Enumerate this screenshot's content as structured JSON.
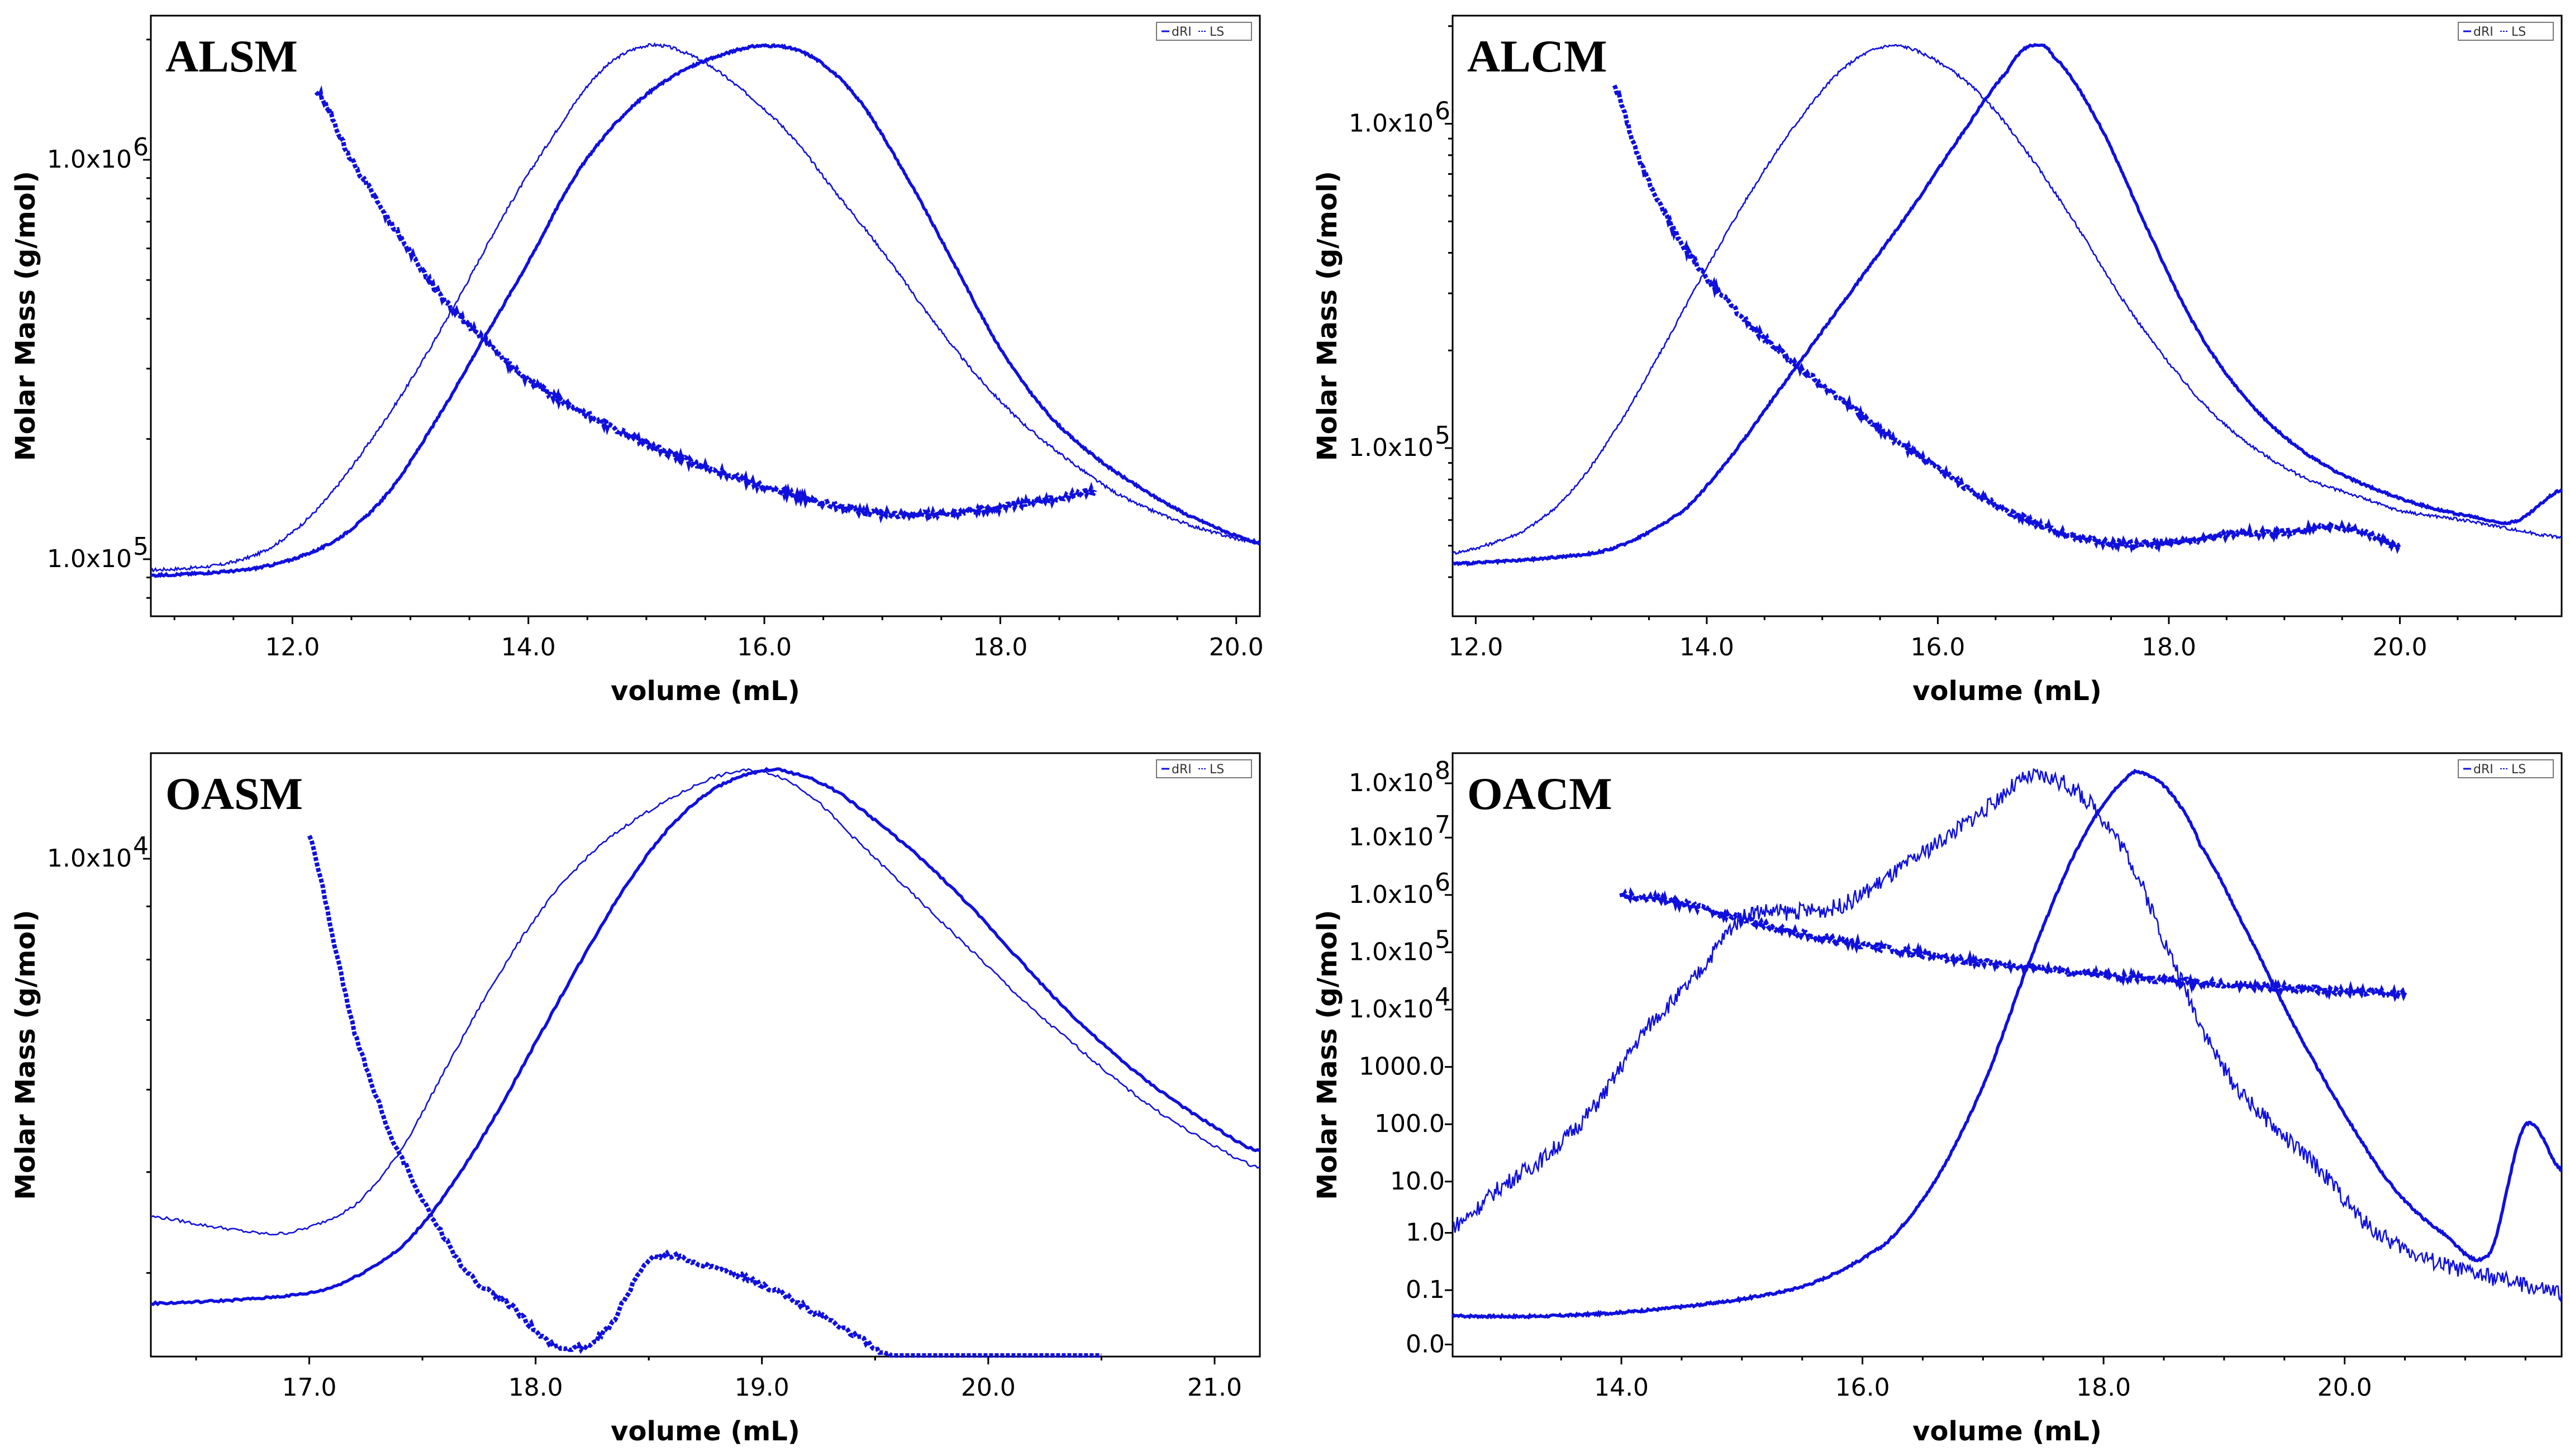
{
  "figure": {
    "color_series": "#1010dd"
  },
  "chart_data": [
    {
      "id": "alsm",
      "type": "line",
      "title": "ALSM",
      "xlabel": "volume (mL)",
      "ylabel": "Molar Mass (g/mol)",
      "xlim": [
        10.8,
        20.2
      ],
      "xticks": [
        "12.0",
        "14.0",
        "16.0",
        "18.0",
        "20.0"
      ],
      "ytick_labels": [
        {
          "label": "1.0x10",
          "sup": "5"
        },
        {
          "label": "1.0x10",
          "sup": "6"
        }
      ],
      "legend": [
        "dRI",
        "LS"
      ],
      "series": [
        {
          "name": "LS",
          "x": [
            10.8,
            11.4,
            11.8,
            12.2,
            12.6,
            13.0,
            13.4,
            13.8,
            14.2,
            14.6,
            15.0,
            15.4,
            15.8,
            16.2,
            16.6,
            17.0,
            17.4,
            17.8,
            18.2,
            18.6,
            19.0,
            19.4,
            19.8,
            20.2
          ],
          "signal": [
            0.03,
            0.04,
            0.07,
            0.14,
            0.25,
            0.38,
            0.53,
            0.69,
            0.83,
            0.95,
            1.0,
            0.98,
            0.92,
            0.84,
            0.73,
            0.62,
            0.5,
            0.39,
            0.3,
            0.23,
            0.17,
            0.13,
            0.1,
            0.08
          ]
        },
        {
          "name": "dRI",
          "x": [
            10.8,
            11.6,
            12.0,
            12.4,
            12.8,
            13.2,
            13.6,
            14.0,
            14.4,
            14.8,
            15.2,
            15.6,
            16.0,
            16.4,
            16.8,
            17.2,
            17.6,
            18.0,
            18.4,
            18.8,
            19.2,
            19.6,
            20.2
          ],
          "signal": [
            0.02,
            0.03,
            0.05,
            0.09,
            0.17,
            0.3,
            0.45,
            0.6,
            0.76,
            0.87,
            0.94,
            0.98,
            1.0,
            0.98,
            0.9,
            0.76,
            0.6,
            0.44,
            0.32,
            0.24,
            0.18,
            0.13,
            0.08
          ]
        },
        {
          "name": "Molar Mass",
          "x": [
            12.2,
            12.5,
            12.8,
            13.2,
            13.6,
            14.0,
            14.5,
            15.0,
            15.5,
            16.0,
            16.5,
            17.0,
            17.5,
            18.0,
            18.5,
            18.8
          ],
          "y": [
            1500000,
            1000000,
            720000,
            480000,
            360000,
            280000,
            230000,
            195000,
            170000,
            152000,
            138000,
            130000,
            130000,
            135000,
            142000,
            148000
          ]
        }
      ]
    },
    {
      "id": "alcm",
      "type": "line",
      "title": "ALCM",
      "xlabel": "volume (mL)",
      "ylabel": "Molar Mass (g/mol)",
      "xlim": [
        11.8,
        21.4
      ],
      "xticks": [
        "12.0",
        "14.0",
        "16.0",
        "18.0",
        "20.0"
      ],
      "ytick_labels": [
        {
          "label": "1.0x10",
          "sup": "5"
        },
        {
          "label": "1.0x10",
          "sup": "6"
        }
      ],
      "legend": [
        "dRI",
        "LS"
      ],
      "series": [
        {
          "name": "LS",
          "x": [
            11.8,
            12.4,
            12.8,
            13.2,
            13.6,
            14.0,
            14.4,
            14.8,
            15.2,
            15.6,
            16.0,
            16.4,
            16.8,
            17.2,
            17.6,
            18.0,
            18.4,
            18.8,
            19.2,
            19.6,
            20.0,
            20.6,
            21.4
          ],
          "signal": [
            0.04,
            0.08,
            0.15,
            0.27,
            0.42,
            0.58,
            0.73,
            0.86,
            0.96,
            1.0,
            0.97,
            0.9,
            0.79,
            0.66,
            0.52,
            0.4,
            0.3,
            0.23,
            0.18,
            0.15,
            0.12,
            0.1,
            0.07
          ]
        },
        {
          "name": "dRI",
          "x": [
            11.8,
            12.6,
            13.2,
            13.8,
            14.2,
            14.6,
            15.0,
            15.4,
            15.8,
            16.2,
            16.6,
            16.8,
            17.0,
            17.4,
            17.8,
            18.2,
            18.6,
            19.0,
            19.4,
            19.8,
            20.2,
            20.6,
            21.0,
            21.4
          ],
          "signal": [
            0.02,
            0.03,
            0.05,
            0.12,
            0.22,
            0.34,
            0.46,
            0.58,
            0.7,
            0.83,
            0.95,
            1.0,
            0.98,
            0.85,
            0.66,
            0.48,
            0.35,
            0.26,
            0.2,
            0.16,
            0.13,
            0.11,
            0.1,
            0.16
          ]
        },
        {
          "name": "Molar Mass",
          "x": [
            13.2,
            13.4,
            13.6,
            13.8,
            14.0,
            14.4,
            14.8,
            15.2,
            15.6,
            16.0,
            16.5,
            17.0,
            17.5,
            18.0,
            18.5,
            19.0,
            19.5,
            20.0
          ],
          "y": [
            1300000,
            800000,
            560000,
            420000,
            330000,
            235000,
            178000,
            138000,
            108000,
            86000,
            67000,
            56000,
            51000,
            51000,
            54000,
            55000,
            57000,
            50000
          ]
        }
      ]
    },
    {
      "id": "oasm",
      "type": "line",
      "title": "OASM",
      "xlabel": "volume (mL)",
      "ylabel": "Molar Mass (g/mol)",
      "xlim": [
        16.3,
        21.2
      ],
      "xticks": [
        "17.0",
        "18.0",
        "19.0",
        "20.0",
        "21.0"
      ],
      "ytick_labels": [
        {
          "label": "1.0x10",
          "sup": "4"
        }
      ],
      "legend": [
        "dRI",
        "LS"
      ],
      "series": [
        {
          "name": "LS",
          "x": [
            16.3,
            16.6,
            16.9,
            17.2,
            17.4,
            17.6,
            17.8,
            18.0,
            18.2,
            18.4,
            18.6,
            18.8,
            19.0,
            19.2,
            19.4,
            19.6,
            19.8,
            20.0,
            20.2,
            20.4,
            20.6,
            20.8,
            21.0,
            21.2
          ],
          "signal": [
            0.18,
            0.16,
            0.15,
            0.2,
            0.3,
            0.45,
            0.6,
            0.73,
            0.83,
            0.9,
            0.95,
            0.99,
            1.0,
            0.96,
            0.88,
            0.8,
            0.72,
            0.64,
            0.56,
            0.49,
            0.42,
            0.36,
            0.31,
            0.27
          ]
        },
        {
          "name": "dRI",
          "x": [
            16.3,
            16.8,
            17.1,
            17.4,
            17.6,
            17.8,
            18.0,
            18.2,
            18.4,
            18.6,
            18.8,
            19.0,
            19.1,
            19.3,
            19.5,
            19.7,
            19.9,
            20.1,
            20.3,
            20.5,
            20.7,
            20.9,
            21.2
          ],
          "signal": [
            0.02,
            0.03,
            0.05,
            0.12,
            0.22,
            0.35,
            0.5,
            0.65,
            0.79,
            0.9,
            0.97,
            1.0,
            1.0,
            0.97,
            0.91,
            0.84,
            0.76,
            0.67,
            0.58,
            0.5,
            0.43,
            0.37,
            0.3
          ]
        },
        {
          "name": "Molar Mass",
          "x": [
            17.0,
            17.1,
            17.2,
            17.35,
            17.5,
            17.7,
            17.9,
            18.1,
            18.3,
            18.5,
            18.7,
            19.0,
            19.3,
            19.6,
            19.9,
            20.2,
            20.5
          ],
          "y": [
            10500,
            8500,
            6800,
            5500,
            4700,
            4000,
            3700,
            3400,
            3500,
            4100,
            4100,
            3900,
            3600,
            3300,
            3100,
            2900,
            2800
          ]
        }
      ]
    },
    {
      "id": "oacm",
      "type": "line",
      "title": "OACM",
      "xlabel": "volume (mL)",
      "ylabel": "Molar Mass (g/mol)",
      "xlim": [
        12.6,
        21.8
      ],
      "xticks": [
        "14.0",
        "16.0",
        "18.0",
        "20.0"
      ],
      "ytick_labels": [
        {
          "label": "0.0",
          "sup": ""
        },
        {
          "label": "0.1",
          "sup": ""
        },
        {
          "label": "1.0",
          "sup": ""
        },
        {
          "label": "10.0",
          "sup": ""
        },
        {
          "label": "100.0",
          "sup": ""
        },
        {
          "label": "1000.0",
          "sup": ""
        },
        {
          "label": "1.0x10",
          "sup": "4"
        },
        {
          "label": "1.0x10",
          "sup": "5"
        },
        {
          "label": "1.0x10",
          "sup": "6"
        },
        {
          "label": "1.0x10",
          "sup": "7"
        },
        {
          "label": "1.0x10",
          "sup": "8"
        }
      ],
      "legend": [
        "dRI",
        "LS"
      ],
      "series": [
        {
          "name": "LS",
          "x": [
            12.6,
            13.0,
            13.4,
            13.8,
            14.2,
            14.6,
            15.0,
            15.4,
            15.8,
            16.2,
            16.6,
            17.0,
            17.4,
            17.8,
            18.2,
            18.6,
            19.0,
            19.4,
            19.8,
            20.2,
            20.6,
            21.0,
            21.4,
            21.8
          ],
          "signal": [
            0.2,
            0.27,
            0.33,
            0.42,
            0.55,
            0.64,
            0.75,
            0.76,
            0.77,
            0.82,
            0.88,
            0.94,
            1.0,
            0.97,
            0.86,
            0.66,
            0.48,
            0.38,
            0.3,
            0.2,
            0.15,
            0.12,
            0.1,
            0.08
          ]
        },
        {
          "name": "dRI",
          "x": [
            12.6,
            13.4,
            14.2,
            15.0,
            15.6,
            16.2,
            16.6,
            17.0,
            17.4,
            17.8,
            18.2,
            18.4,
            18.6,
            18.8,
            19.2,
            19.6,
            20.0,
            20.4,
            20.8,
            21.2,
            21.5,
            21.8
          ],
          "signal": [
            0.04,
            0.04,
            0.05,
            0.07,
            0.1,
            0.17,
            0.28,
            0.45,
            0.68,
            0.88,
            1.0,
            1.0,
            0.96,
            0.88,
            0.72,
            0.55,
            0.4,
            0.27,
            0.19,
            0.15,
            0.38,
            0.3
          ]
        },
        {
          "name": "Molar Mass",
          "x": [
            14.0,
            14.2,
            14.5,
            15.0,
            15.5,
            16.0,
            16.5,
            17.0,
            17.5,
            18.0,
            18.5,
            19.0,
            19.5,
            20.0,
            20.5
          ],
          "y": [
            1000000,
            900000,
            700000,
            380000,
            210000,
            135000,
            92000,
            66000,
            50000,
            40000,
            33000,
            27500,
            24000,
            21000,
            18500
          ]
        }
      ]
    }
  ]
}
